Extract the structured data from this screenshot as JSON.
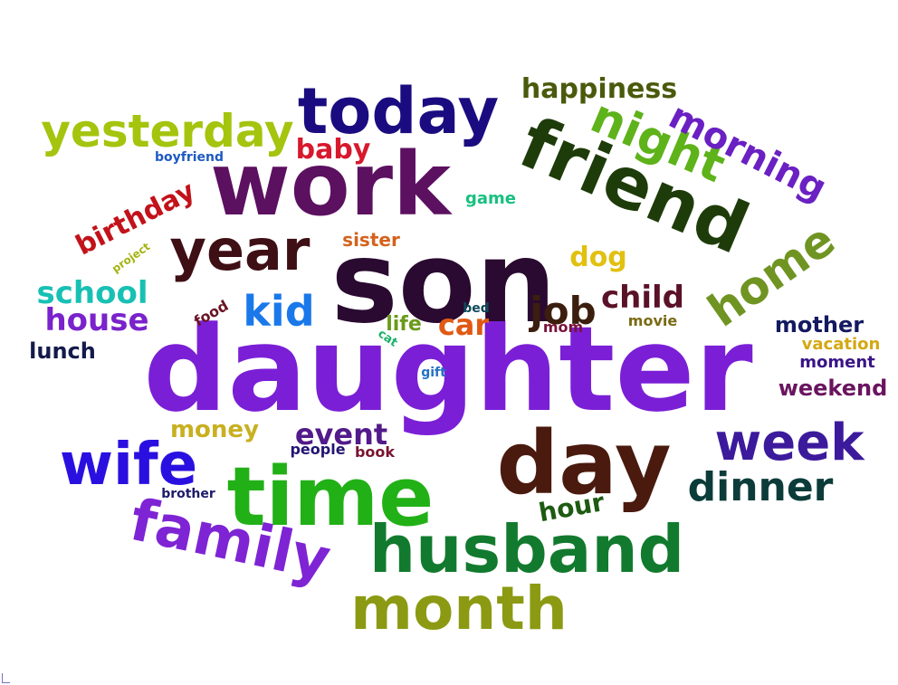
{
  "word_cloud": {
    "words": [
      {
        "text": "daughter",
        "color": "#7a1fd6"
      },
      {
        "text": "son",
        "color": "#2a0a30"
      },
      {
        "text": "work",
        "color": "#5c1060"
      },
      {
        "text": "time",
        "color": "#22b017"
      },
      {
        "text": "day",
        "color": "#4a1a0e"
      },
      {
        "text": "friend",
        "color": "#1e3c0a"
      },
      {
        "text": "husband",
        "color": "#127a2e"
      },
      {
        "text": "today",
        "color": "#1a0c80"
      },
      {
        "text": "family",
        "color": "#7e24d4"
      },
      {
        "text": "month",
        "color": "#8b9a12"
      },
      {
        "text": "year",
        "color": "#3e0f14"
      },
      {
        "text": "wife",
        "color": "#2a10e0"
      },
      {
        "text": "yesterday",
        "color": "#a4c40e"
      },
      {
        "text": "night",
        "color": "#5eb21a"
      },
      {
        "text": "week",
        "color": "#3c1a9c"
      },
      {
        "text": "home",
        "color": "#709422"
      },
      {
        "text": "morning",
        "color": "#6a20c2"
      },
      {
        "text": "dinner",
        "color": "#0c3c3a"
      },
      {
        "text": "kid",
        "color": "#1a78ea"
      },
      {
        "text": "job",
        "color": "#3c1e0e"
      },
      {
        "text": "happiness",
        "color": "#4a5a0c"
      },
      {
        "text": "school",
        "color": "#18c0b4"
      },
      {
        "text": "house",
        "color": "#7a22cc"
      },
      {
        "text": "child",
        "color": "#5a1228"
      },
      {
        "text": "event",
        "color": "#521a8a"
      },
      {
        "text": "birthday",
        "color": "#c2121a"
      },
      {
        "text": "baby",
        "color": "#d8182c"
      },
      {
        "text": "hour",
        "color": "#1e5a12"
      },
      {
        "text": "car",
        "color": "#e05a14"
      },
      {
        "text": "dog",
        "color": "#e2c010"
      },
      {
        "text": "mother",
        "color": "#141a60"
      },
      {
        "text": "weekend",
        "color": "#6a1460"
      },
      {
        "text": "lunch",
        "color": "#141a4a"
      },
      {
        "text": "money",
        "color": "#c8b020"
      },
      {
        "text": "life",
        "color": "#6a9a1a"
      },
      {
        "text": "sister",
        "color": "#d4621c"
      },
      {
        "text": "vacation",
        "color": "#d4a814"
      },
      {
        "text": "moment",
        "color": "#3a1488"
      },
      {
        "text": "game",
        "color": "#18c080"
      },
      {
        "text": "movie",
        "color": "#7a6a14"
      },
      {
        "text": "mom",
        "color": "#7a1238"
      },
      {
        "text": "food",
        "color": "#6a1424"
      },
      {
        "text": "people",
        "color": "#241472"
      },
      {
        "text": "book",
        "color": "#7a1430"
      },
      {
        "text": "brother",
        "color": "#1e1a6a"
      },
      {
        "text": "boyfriend",
        "color": "#1e5ac2"
      },
      {
        "text": "project",
        "color": "#a4b412"
      },
      {
        "text": "bed",
        "color": "#0c4a5a"
      },
      {
        "text": "gift",
        "color": "#2470c4"
      },
      {
        "text": "cat",
        "color": "#18b068"
      }
    ]
  }
}
